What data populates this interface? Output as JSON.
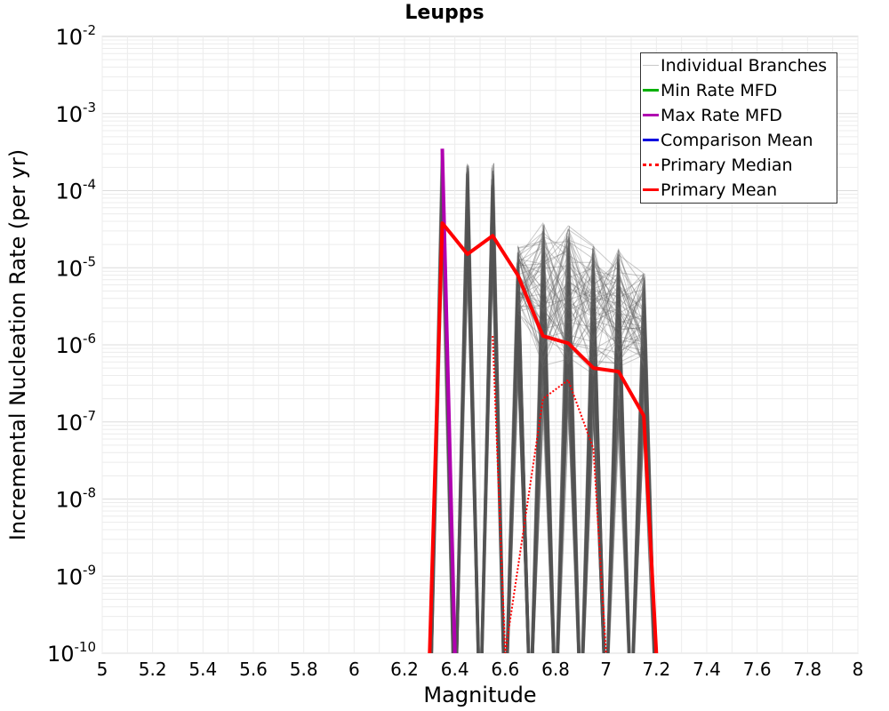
{
  "chart_data": {
    "type": "line",
    "title": "Leupps",
    "xlabel": "Magnitude",
    "ylabel": "Incremental Nucleation Rate (per yr)",
    "xlim": [
      5,
      8
    ],
    "ylim": [
      1e-10,
      0.01
    ],
    "yscale": "log",
    "grid": true,
    "legend_position": "top-right",
    "x_ticks": [
      "5",
      "5.2",
      "5.4",
      "5.6",
      "5.8",
      "6",
      "6.2",
      "6.4",
      "6.6",
      "6.8",
      "7",
      "7.2",
      "7.4",
      "7.6",
      "7.8",
      "8"
    ],
    "y_ticks": [
      {
        "base": "10",
        "exp": "-10"
      },
      {
        "base": "10",
        "exp": "-9"
      },
      {
        "base": "10",
        "exp": "-8"
      },
      {
        "base": "10",
        "exp": "-7"
      },
      {
        "base": "10",
        "exp": "-6"
      },
      {
        "base": "10",
        "exp": "-5"
      },
      {
        "base": "10",
        "exp": "-4"
      },
      {
        "base": "10",
        "exp": "-3"
      },
      {
        "base": "10",
        "exp": "-2"
      }
    ],
    "legend": [
      {
        "label": "Individual Branches",
        "color": "#c8c8c8",
        "style": "solid"
      },
      {
        "label": "Min Rate MFD",
        "color": "#00b000",
        "style": "solid"
      },
      {
        "label": "Max Rate MFD",
        "color": "#b000b0",
        "style": "solid"
      },
      {
        "label": "Comparison Mean",
        "color": "#0000e0",
        "style": "solid"
      },
      {
        "label": " Primary Median",
        "color": "#ff0000",
        "style": "dotted"
      },
      {
        "label": "Primary Mean",
        "color": "#ff0000",
        "style": "solid"
      }
    ],
    "series": [
      {
        "name": "Max Rate MFD",
        "color": "#b000b0",
        "x": [
          6.35,
          6.4
        ],
        "y": [
          0.00035,
          1e-10
        ]
      },
      {
        "name": "Primary Median",
        "color": "#ff0000",
        "style": "dotted",
        "x": [
          6.55,
          6.6,
          6.75,
          6.85,
          6.95,
          7.0
        ],
        "y": [
          1.3e-06,
          1e-10,
          2e-07,
          3.5e-07,
          4.5e-08,
          1e-10
        ]
      },
      {
        "name": "Primary Mean",
        "color": "#ff0000",
        "x": [
          6.3,
          6.35,
          6.45,
          6.55,
          6.65,
          6.75,
          6.85,
          6.95,
          7.05,
          7.15,
          7.2
        ],
        "y": [
          1e-10,
          3.8e-05,
          1.5e-05,
          2.6e-05,
          8e-06,
          1.3e-06,
          1.05e-06,
          5e-07,
          4.5e-07,
          1.2e-07,
          1e-10
        ]
      }
    ],
    "branches": {
      "count": 60,
      "magnitudes": [
        6.35,
        6.45,
        6.55,
        6.65,
        6.75,
        6.85,
        6.95,
        7.05,
        7.15
      ],
      "peak_max": [
        0.00035,
        0.00023,
        0.00023,
        2e-05,
        4e-05,
        3.5e-05,
        2e-05,
        1.8e-05,
        9e-06
      ],
      "peak_min": [
        3e-05,
        1e-05,
        1e-05,
        5e-07,
        1e-07,
        1e-07,
        8e-08,
        1e-07,
        1e-07
      ]
    }
  }
}
